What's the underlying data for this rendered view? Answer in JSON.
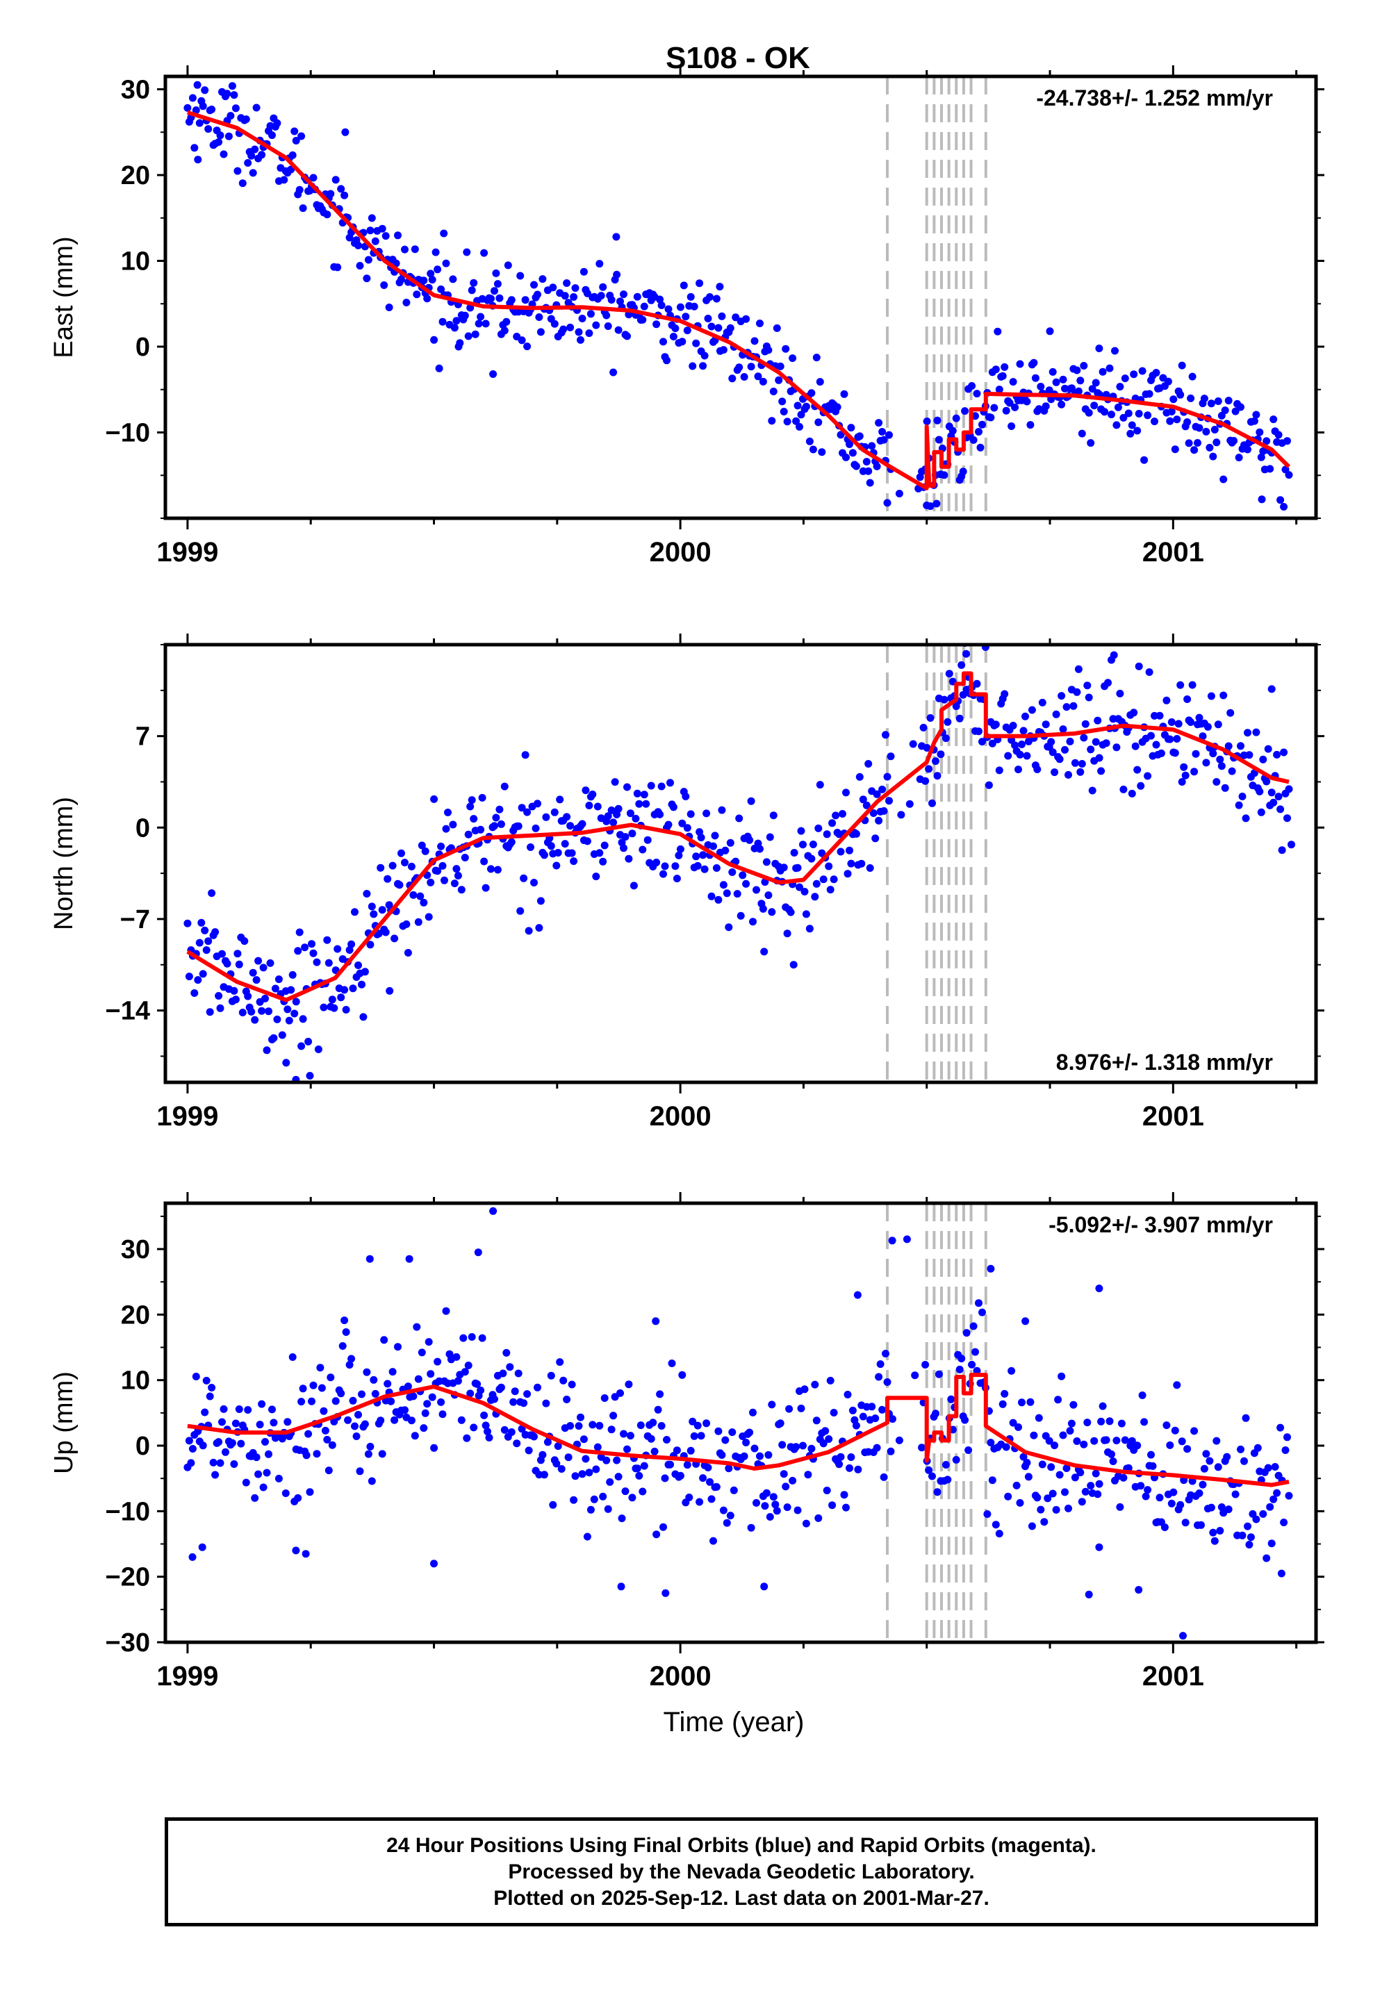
{
  "title": "S108 - OK",
  "footer": {
    "line1": "24 Hour Positions Using Final Orbits (blue) and Rapid Orbits (magenta).",
    "line2": "Processed by the Nevada Geodetic Laboratory.",
    "line3": "Plotted on 2025-Sep-12. Last data on 2001-Mar-27."
  },
  "colors": {
    "final_orbits": "#0000ff",
    "fit": "#ff0000",
    "steps": "#bbbbbb"
  },
  "chart_data": [
    {
      "type": "scatter",
      "panel": "east",
      "ylabel": "East (mm)",
      "xlabel": "",
      "xlim": [
        1998.955,
        2001.29
      ],
      "ylim": [
        -20,
        31.5
      ],
      "xticks": [
        1999,
        2000,
        2001
      ],
      "yticks": [
        -10,
        0,
        10,
        20,
        30
      ],
      "rate_label": "-24.738+/- 1.252 mm/yr",
      "rate_position": "top-right",
      "grid": false,
      "step_lines": [
        2000.42,
        2000.5,
        2000.515,
        2000.53,
        2000.545,
        2000.56,
        2000.575,
        2000.59,
        2000.62
      ],
      "fit_breakpoints": [
        [
          1999.0,
          27.3
        ],
        [
          1999.1,
          25.5
        ],
        [
          1999.2,
          22
        ],
        [
          1999.3,
          16
        ],
        [
          1999.4,
          10
        ],
        [
          1999.5,
          6
        ],
        [
          1999.6,
          4.7
        ],
        [
          1999.7,
          4.5
        ],
        [
          1999.8,
          4.6
        ],
        [
          1999.9,
          4.2
        ],
        [
          2000.0,
          3.0
        ],
        [
          2000.1,
          0.5
        ],
        [
          2000.2,
          -3
        ],
        [
          2000.3,
          -8
        ],
        [
          2000.37,
          -12
        ],
        [
          2000.42,
          -13.8
        ],
        [
          2000.5,
          -16.5
        ]
      ],
      "fit_steps": [
        [
          2000.5,
          -16.5
        ],
        [
          2000.5,
          -9.3
        ],
        [
          2000.505,
          -16.2
        ],
        [
          2000.515,
          -16.2
        ],
        [
          2000.515,
          -12.3
        ],
        [
          2000.53,
          -12.3
        ],
        [
          2000.53,
          -14.0
        ],
        [
          2000.545,
          -14.0
        ],
        [
          2000.545,
          -10.8
        ],
        [
          2000.56,
          -10.8
        ],
        [
          2000.56,
          -12.0
        ],
        [
          2000.575,
          -12.0
        ],
        [
          2000.575,
          -10.0
        ],
        [
          2000.59,
          -10.0
        ],
        [
          2000.59,
          -7.3
        ],
        [
          2000.62,
          -7.3
        ],
        [
          2000.62,
          -5.5
        ]
      ],
      "fit_tail": [
        [
          2000.62,
          -5.5
        ],
        [
          2000.7,
          -5.6
        ],
        [
          2000.8,
          -5.7
        ],
        [
          2000.9,
          -6.3
        ],
        [
          2001.0,
          -7.0
        ],
        [
          2001.1,
          -9.0
        ],
        [
          2001.2,
          -12.0
        ],
        [
          2001.235,
          -14.0
        ]
      ],
      "scatter_spread": 2.4,
      "outliers": [
        [
          1999.02,
          30.5
        ],
        [
          1999.08,
          29.5
        ],
        [
          1999.32,
          25.0
        ],
        [
          1999.52,
          13.2
        ],
        [
          1999.62,
          -3.2
        ],
        [
          1999.87,
          12.8
        ],
        [
          2000.08,
          7.0
        ],
        [
          2000.5,
          -18.5
        ],
        [
          2000.52,
          -18.3
        ],
        [
          2000.75,
          1.8
        ],
        [
          2000.85,
          -0.2
        ],
        [
          2001.18,
          -17.8
        ],
        [
          1999.55,
          0.0
        ]
      ]
    },
    {
      "type": "scatter",
      "panel": "north",
      "ylabel": "North (mm)",
      "xlabel": "",
      "xlim": [
        1998.955,
        2001.29
      ],
      "ylim": [
        -19.5,
        14
      ],
      "xticks": [
        1999,
        2000,
        2001
      ],
      "yticks": [
        -14,
        -7,
        0,
        7
      ],
      "rate_label": "8.976+/- 1.318 mm/yr",
      "rate_position": "bottom-right",
      "grid": false,
      "step_lines": [
        2000.42,
        2000.5,
        2000.515,
        2000.53,
        2000.545,
        2000.56,
        2000.575,
        2000.59,
        2000.62
      ],
      "fit_breakpoints": [
        [
          1999.0,
          -9.5
        ],
        [
          1999.1,
          -11.8
        ],
        [
          1999.2,
          -13.2
        ],
        [
          1999.3,
          -11.5
        ],
        [
          1999.4,
          -7.0
        ],
        [
          1999.5,
          -2.5
        ],
        [
          1999.6,
          -0.8
        ],
        [
          1999.7,
          -0.6
        ],
        [
          1999.8,
          -0.4
        ],
        [
          1999.9,
          0.2
        ],
        [
          2000.0,
          -0.5
        ],
        [
          2000.1,
          -2.8
        ],
        [
          2000.2,
          -4.2
        ],
        [
          2000.25,
          -4.0
        ],
        [
          2000.3,
          -2.0
        ],
        [
          2000.4,
          2.0
        ],
        [
          2000.5,
          5.0
        ]
      ],
      "fit_steps": [
        [
          2000.5,
          5.0
        ],
        [
          2000.515,
          6.5
        ],
        [
          2000.53,
          7.5
        ],
        [
          2000.53,
          9.0
        ],
        [
          2000.56,
          9.8
        ],
        [
          2000.56,
          11.0
        ],
        [
          2000.575,
          11.0
        ],
        [
          2000.575,
          11.8
        ],
        [
          2000.59,
          11.8
        ],
        [
          2000.59,
          10.2
        ],
        [
          2000.62,
          10.2
        ],
        [
          2000.62,
          7.0
        ]
      ],
      "fit_tail": [
        [
          2000.62,
          7.0
        ],
        [
          2000.7,
          7.0
        ],
        [
          2000.8,
          7.2
        ],
        [
          2000.9,
          7.8
        ],
        [
          2001.0,
          7.5
        ],
        [
          2001.1,
          6.0
        ],
        [
          2001.2,
          3.8
        ],
        [
          2001.235,
          3.5
        ]
      ],
      "scatter_spread": 2.2,
      "outliers": [
        [
          1999.22,
          -19.3
        ],
        [
          1999.2,
          -18.0
        ],
        [
          2000.17,
          -9.5
        ],
        [
          2000.23,
          -10.5
        ],
        [
          2000.88,
          13.2
        ],
        [
          2001.2,
          10.6
        ],
        [
          2001.24,
          -1.3
        ],
        [
          1999.41,
          -12.5
        ],
        [
          2000.58,
          13.3
        ]
      ]
    },
    {
      "type": "scatter",
      "panel": "up",
      "ylabel": "Up (mm)",
      "xlabel": "Time (year)",
      "xlim": [
        1998.955,
        2001.29
      ],
      "ylim": [
        -30,
        37
      ],
      "xticks": [
        1999,
        2000,
        2001
      ],
      "yticks": [
        -30,
        -20,
        -10,
        0,
        10,
        20,
        30
      ],
      "rate_label": "-5.092+/- 3.907 mm/yr",
      "rate_position": "top-right",
      "grid": false,
      "step_lines": [
        2000.42,
        2000.5,
        2000.515,
        2000.53,
        2000.545,
        2000.56,
        2000.575,
        2000.59,
        2000.62
      ],
      "fit_breakpoints": [
        [
          1999.0,
          3.0
        ],
        [
          1999.1,
          2.0
        ],
        [
          1999.2,
          2.0
        ],
        [
          1999.3,
          4.5
        ],
        [
          1999.4,
          7.5
        ],
        [
          1999.5,
          9.0
        ],
        [
          1999.6,
          6.5
        ],
        [
          1999.7,
          2.5
        ],
        [
          1999.8,
          -0.8
        ],
        [
          1999.9,
          -1.5
        ],
        [
          2000.0,
          -2.0
        ],
        [
          2000.1,
          -2.7
        ],
        [
          2000.15,
          -3.5
        ],
        [
          2000.2,
          -3.0
        ],
        [
          2000.3,
          -1.0
        ],
        [
          2000.38,
          2.0
        ],
        [
          2000.42,
          3.5
        ]
      ],
      "fit_steps": [
        [
          2000.42,
          3.5
        ],
        [
          2000.42,
          7.3
        ],
        [
          2000.5,
          7.3
        ],
        [
          2000.5,
          -2.3
        ],
        [
          2000.505,
          0.8
        ],
        [
          2000.515,
          0.8
        ],
        [
          2000.515,
          2.0
        ],
        [
          2000.53,
          2.0
        ],
        [
          2000.53,
          0.8
        ],
        [
          2000.545,
          0.8
        ],
        [
          2000.545,
          4.5
        ],
        [
          2000.56,
          4.5
        ],
        [
          2000.56,
          10.5
        ],
        [
          2000.575,
          10.5
        ],
        [
          2000.575,
          8.0
        ],
        [
          2000.59,
          8.0
        ],
        [
          2000.59,
          10.8
        ],
        [
          2000.62,
          10.8
        ],
        [
          2000.62,
          3.0
        ]
      ],
      "fit_tail": [
        [
          2000.62,
          3.0
        ],
        [
          2000.7,
          -1.0
        ],
        [
          2000.8,
          -3.0
        ],
        [
          2000.9,
          -4.0
        ],
        [
          2001.0,
          -4.5
        ],
        [
          2001.1,
          -5.2
        ],
        [
          2001.2,
          -6.0
        ],
        [
          2001.235,
          -5.5
        ]
      ],
      "scatter_spread": 5.5,
      "outliers": [
        [
          1999.62,
          35.8
        ],
        [
          1999.37,
          28.5
        ],
        [
          1999.45,
          28.5
        ],
        [
          1999.59,
          29.5
        ],
        [
          2000.43,
          31.3
        ],
        [
          2000.46,
          31.5
        ],
        [
          2000.63,
          27.0
        ],
        [
          2000.85,
          24.0
        ],
        [
          2000.7,
          19.0
        ],
        [
          1999.95,
          19.0
        ],
        [
          1999.5,
          -18.0
        ],
        [
          1999.88,
          -21.5
        ],
        [
          1999.97,
          -22.5
        ],
        [
          2000.17,
          -21.5
        ],
        [
          2000.93,
          -22.0
        ],
        [
          2001.02,
          -29.0
        ],
        [
          2001.22,
          -19.5
        ],
        [
          2000.36,
          23.0
        ],
        [
          1999.01,
          -17.0
        ],
        [
          1999.03,
          -15.5
        ],
        [
          1999.22,
          -16.0
        ],
        [
          1999.24,
          -16.5
        ],
        [
          2000.85,
          -15.5
        ]
      ]
    }
  ]
}
